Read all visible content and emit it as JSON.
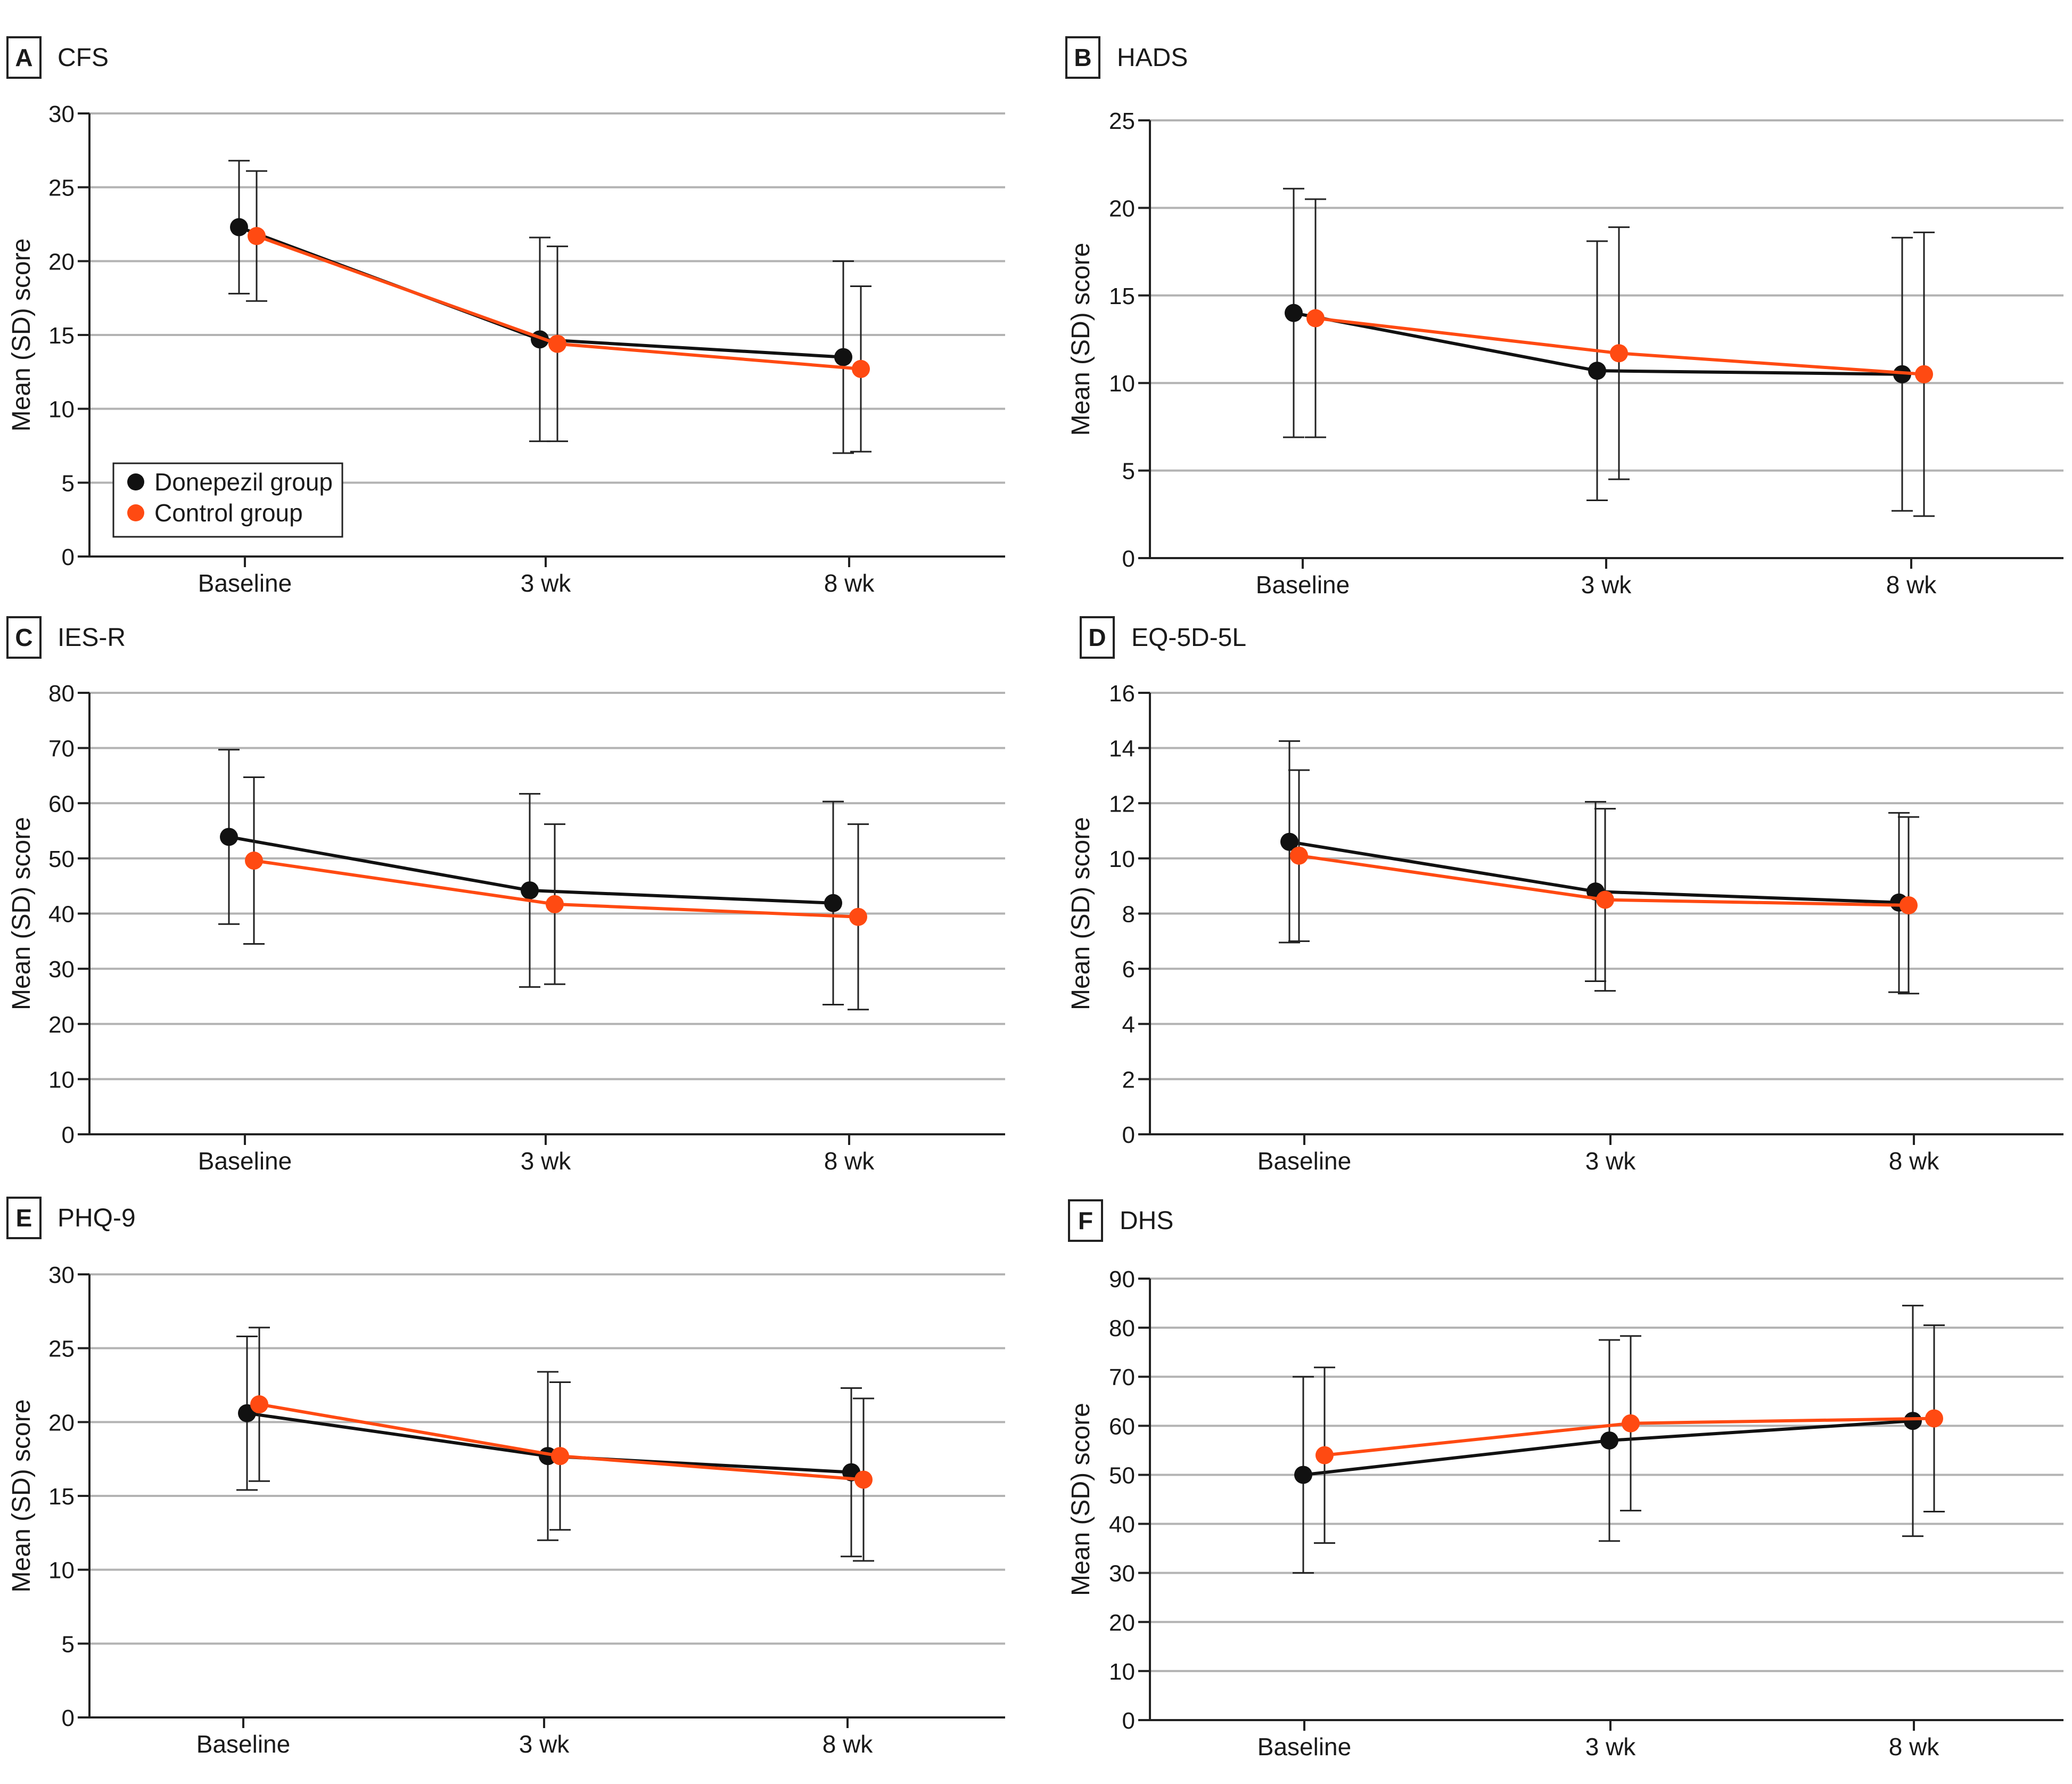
{
  "colors": {
    "donepezil": "#111111",
    "control": "#ff4a12",
    "grid": "#b3b3b3",
    "axis": "#222222",
    "text": "#1a1a1a"
  },
  "legend": {
    "donepezil_label": "Donepezil group",
    "control_label": "Control group",
    "panel": "A"
  },
  "chart_data": [
    {
      "type": "line",
      "panel_letter": "A",
      "title": "CFS",
      "ylabel": "Mean (SD) score",
      "categories": [
        "Baseline",
        "3 wk",
        "8 wk"
      ],
      "ylim": [
        0,
        30
      ],
      "yticks": [
        0,
        5,
        10,
        15,
        20,
        25,
        30
      ],
      "series": [
        {
          "name": "Donepezil group",
          "values": [
            22.3,
            14.7,
            13.5
          ],
          "sd": [
            4.5,
            6.9,
            6.5
          ]
        },
        {
          "name": "Control group",
          "values": [
            21.7,
            14.4,
            12.7
          ],
          "sd": [
            4.4,
            6.6,
            5.6
          ]
        }
      ]
    },
    {
      "type": "line",
      "panel_letter": "B",
      "title": "HADS",
      "ylabel": "Mean (SD) score",
      "categories": [
        "Baseline",
        "3 wk",
        "8 wk"
      ],
      "ylim": [
        0,
        25
      ],
      "yticks": [
        0,
        5,
        10,
        15,
        20,
        25
      ],
      "series": [
        {
          "name": "Donepezil group",
          "values": [
            14.0,
            10.7,
            10.5
          ],
          "sd": [
            7.1,
            7.4,
            7.8
          ]
        },
        {
          "name": "Control group",
          "values": [
            13.7,
            11.7,
            10.5
          ],
          "sd": [
            6.8,
            7.2,
            8.1
          ]
        }
      ]
    },
    {
      "type": "line",
      "panel_letter": "C",
      "title": "IES-R",
      "ylabel": "Mean (SD) score",
      "categories": [
        "Baseline",
        "3 wk",
        "8 wk"
      ],
      "ylim": [
        0,
        80
      ],
      "yticks": [
        0,
        10,
        20,
        30,
        40,
        50,
        60,
        70,
        80
      ],
      "series": [
        {
          "name": "Donepezil group",
          "values": [
            53.9,
            44.2,
            41.9
          ],
          "sd": [
            15.8,
            17.5,
            18.4
          ]
        },
        {
          "name": "Control group",
          "values": [
            49.6,
            41.7,
            39.4
          ],
          "sd": [
            15.1,
            14.5,
            16.8
          ]
        }
      ]
    },
    {
      "type": "line",
      "panel_letter": "D",
      "title": "EQ-5D-5L",
      "ylabel": "Mean (SD) score",
      "categories": [
        "Baseline",
        "3 wk",
        "8 wk"
      ],
      "ylim": [
        0,
        16
      ],
      "yticks": [
        0,
        2,
        4,
        6,
        8,
        10,
        12,
        14,
        16
      ],
      "series": [
        {
          "name": "Donepezil group",
          "values": [
            10.6,
            8.8,
            8.4
          ],
          "sd": [
            3.65,
            3.25,
            3.25
          ]
        },
        {
          "name": "Control group",
          "values": [
            10.1,
            8.5,
            8.3
          ],
          "sd": [
            3.1,
            3.3,
            3.2
          ]
        }
      ]
    },
    {
      "type": "line",
      "panel_letter": "E",
      "title": "PHQ-9",
      "ylabel": "Mean (SD) score",
      "categories": [
        "Baseline",
        "3 wk",
        "8 wk"
      ],
      "ylim": [
        0,
        30
      ],
      "yticks": [
        0,
        5,
        10,
        15,
        20,
        25,
        30
      ],
      "series": [
        {
          "name": "Donepezil group",
          "values": [
            20.6,
            17.7,
            16.6
          ],
          "sd": [
            5.2,
            5.7,
            5.7
          ]
        },
        {
          "name": "Control group",
          "values": [
            21.2,
            17.7,
            16.1
          ],
          "sd": [
            5.2,
            5.0,
            5.5
          ]
        }
      ]
    },
    {
      "type": "line",
      "panel_letter": "F",
      "title": "DHS",
      "ylabel": "Mean (SD) score",
      "categories": [
        "Baseline",
        "3 wk",
        "8 wk"
      ],
      "ylim": [
        0,
        90
      ],
      "yticks": [
        0,
        10,
        20,
        30,
        40,
        50,
        60,
        70,
        80,
        90
      ],
      "series": [
        {
          "name": "Donepezil group",
          "values": [
            50.0,
            57.0,
            61.0
          ],
          "sd": [
            20.0,
            20.5,
            23.5
          ]
        },
        {
          "name": "Control group",
          "values": [
            54.0,
            60.5,
            61.5
          ],
          "sd": [
            17.9,
            17.8,
            19.0
          ]
        }
      ]
    }
  ]
}
